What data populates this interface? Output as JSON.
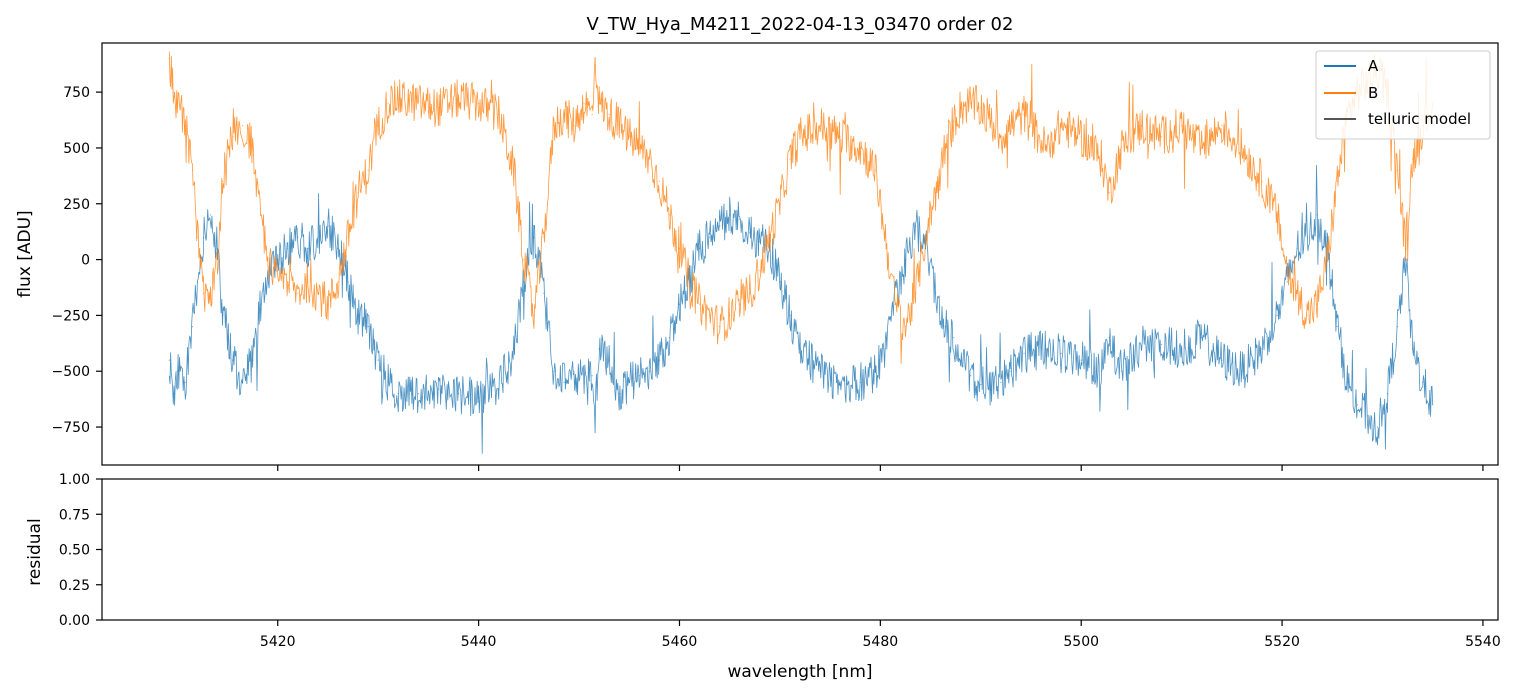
{
  "chart_data": [
    {
      "type": "line",
      "title": "V_TW_Hya_M4211_2022-04-13_03470  order 02",
      "xlabel": "",
      "ylabel": "flux [ADU]",
      "xlim": [
        5402.5,
        5541.5
      ],
      "ylim": [
        -920,
        970
      ],
      "xticks": [
        5420,
        5440,
        5460,
        5480,
        5500,
        5520,
        5540
      ],
      "yticks": [
        -750,
        -500,
        -250,
        0,
        250,
        500,
        750
      ],
      "ytick_labels": [
        "−750",
        "−500",
        "−250",
        "0",
        "250",
        "500",
        "750"
      ],
      "grid": false,
      "legend_position": "top-right",
      "legend": [
        "A",
        "B",
        "telluric model"
      ],
      "series": [
        {
          "name": "A",
          "color": "#1f77b4",
          "x": [
            5409.2,
            5409.6,
            5410.0,
            5410.8,
            5411.5,
            5412.0,
            5412.6,
            5413.3,
            5414.0,
            5414.5,
            5415.5,
            5416.5,
            5417.5,
            5418.3,
            5419.0,
            5420.0,
            5421.0,
            5422.0,
            5423.0,
            5424.0,
            5425.0,
            5426.0,
            5427.0,
            5428.0,
            5429.0,
            5430.0,
            5431.0,
            5432.0,
            5434.0,
            5436.0,
            5438.0,
            5440.0,
            5442.0,
            5443.5,
            5444.5,
            5445.5,
            5446.5,
            5447.5,
            5448.5,
            5449.5,
            5450.5,
            5451.3,
            5451.6,
            5452.0,
            5453.0,
            5454.0,
            5455.0,
            5456.0,
            5457.0,
            5458.0,
            5459.0,
            5460.0,
            5461.0,
            5462.0,
            5463.0,
            5464.0,
            5465.0,
            5466.0,
            5467.0,
            5468.0,
            5469.0,
            5470.0,
            5471.0,
            5472.0,
            5474.0,
            5476.0,
            5478.0,
            5479.5,
            5480.5,
            5481.5,
            5482.5,
            5483.5,
            5484.5,
            5485.5,
            5486.5,
            5487.3,
            5488.0,
            5489.0,
            5490.0,
            5491.0,
            5492.0,
            5493.0,
            5494.3,
            5496.5,
            5498.0,
            5500.0,
            5502.0,
            5502.8,
            5504.0,
            5506.0,
            5508.0,
            5510.0,
            5512.0,
            5514.0,
            5516.0,
            5518.0,
            5519.5,
            5520.5,
            5521.5,
            5522.5,
            5523.5,
            5524.5,
            5525.5,
            5526.5,
            5527.5,
            5528.5,
            5529.5,
            5530.5,
            5531.5,
            5532.3,
            5533.0,
            5534.0,
            5535.0
          ],
          "values": [
            -450,
            -600,
            -500,
            -550,
            -300,
            -100,
            100,
            200,
            50,
            -250,
            -450,
            -550,
            -450,
            -200,
            -50,
            0,
            50,
            100,
            50,
            100,
            150,
            50,
            -100,
            -250,
            -300,
            -450,
            -550,
            -600,
            -600,
            -580,
            -600,
            -620,
            -580,
            -400,
            -100,
            100,
            -150,
            -500,
            -550,
            -500,
            -550,
            -520,
            -700,
            -400,
            -450,
            -600,
            -550,
            -520,
            -500,
            -450,
            -350,
            -200,
            -100,
            50,
            100,
            150,
            200,
            180,
            120,
            80,
            50,
            -100,
            -250,
            -400,
            -500,
            -560,
            -550,
            -500,
            -400,
            -200,
            0,
            150,
            50,
            -150,
            -300,
            -350,
            -450,
            -520,
            -560,
            -580,
            -550,
            -500,
            -420,
            -400,
            -420,
            -450,
            -500,
            -350,
            -500,
            -400,
            -380,
            -400,
            -350,
            -450,
            -500,
            -400,
            -250,
            -100,
            50,
            100,
            200,
            50,
            -300,
            -550,
            -650,
            -700,
            -750,
            -600,
            -300,
            0,
            -400,
            -550,
            -650
          ]
        },
        {
          "name": "B",
          "color": "#ff7f0e",
          "x": [
            5409.2,
            5409.6,
            5410.0,
            5410.8,
            5411.5,
            5412.0,
            5412.6,
            5413.3,
            5414.0,
            5414.5,
            5415.5,
            5416.5,
            5417.5,
            5418.3,
            5419.0,
            5420.0,
            5421.0,
            5422.0,
            5423.0,
            5424.0,
            5425.0,
            5426.0,
            5427.0,
            5428.0,
            5429.0,
            5430.0,
            5431.0,
            5432.0,
            5434.0,
            5436.0,
            5438.0,
            5440.0,
            5442.0,
            5443.5,
            5444.5,
            5445.5,
            5446.5,
            5447.5,
            5448.5,
            5449.5,
            5450.5,
            5451.3,
            5451.6,
            5452.0,
            5453.0,
            5454.0,
            5455.0,
            5456.0,
            5457.0,
            5458.0,
            5459.0,
            5460.0,
            5461.0,
            5462.0,
            5463.0,
            5464.0,
            5465.0,
            5466.0,
            5467.0,
            5468.0,
            5469.0,
            5470.0,
            5471.0,
            5472.0,
            5474.0,
            5476.0,
            5478.0,
            5479.5,
            5480.5,
            5481.5,
            5482.5,
            5483.5,
            5484.5,
            5485.5,
            5486.5,
            5487.3,
            5488.0,
            5489.0,
            5490.0,
            5491.0,
            5492.0,
            5493.0,
            5494.3,
            5496.5,
            5498.0,
            5500.0,
            5502.0,
            5502.8,
            5504.0,
            5506.0,
            5508.0,
            5510.0,
            5512.0,
            5514.0,
            5516.0,
            5518.0,
            5519.5,
            5520.5,
            5521.5,
            5522.5,
            5523.5,
            5524.5,
            5525.5,
            5526.5,
            5527.5,
            5528.5,
            5529.5,
            5530.5,
            5531.5,
            5532.3,
            5533.0,
            5534.0,
            5535.0
          ],
          "values": [
            900,
            750,
            700,
            600,
            400,
            100,
            -150,
            -200,
            0,
            350,
            550,
            600,
            500,
            200,
            0,
            -50,
            -100,
            -150,
            -100,
            -150,
            -200,
            -100,
            100,
            300,
            400,
            600,
            700,
            720,
            700,
            680,
            720,
            700,
            650,
            400,
            0,
            -250,
            100,
            600,
            650,
            600,
            700,
            650,
            900,
            700,
            650,
            600,
            550,
            500,
            450,
            350,
            200,
            50,
            -100,
            -200,
            -250,
            -300,
            -250,
            -200,
            -150,
            -50,
            100,
            250,
            450,
            550,
            600,
            550,
            500,
            400,
            100,
            -200,
            -300,
            -150,
            100,
            300,
            500,
            620,
            680,
            700,
            680,
            620,
            550,
            600,
            650,
            500,
            600,
            550,
            450,
            300,
            500,
            600,
            550,
            600,
            500,
            600,
            500,
            350,
            200,
            -50,
            -150,
            -250,
            -200,
            0,
            350,
            650,
            750,
            800,
            850,
            750,
            400,
            50,
            450,
            600,
            700
          ]
        },
        {
          "name": "telluric model",
          "color": "#555555",
          "x": [],
          "values": []
        }
      ]
    },
    {
      "type": "line",
      "title": "",
      "xlabel": "wavelength [nm]",
      "ylabel": "residual",
      "xlim": [
        5402.5,
        5541.5
      ],
      "ylim": [
        0.0,
        1.0
      ],
      "xticks": [
        5420,
        5440,
        5460,
        5480,
        5500,
        5520,
        5540
      ],
      "yticks": [
        0.0,
        0.25,
        0.5,
        0.75,
        1.0
      ],
      "ytick_labels": [
        "0.00",
        "0.25",
        "0.50",
        "0.75",
        "1.00"
      ],
      "grid": false,
      "series": []
    }
  ]
}
